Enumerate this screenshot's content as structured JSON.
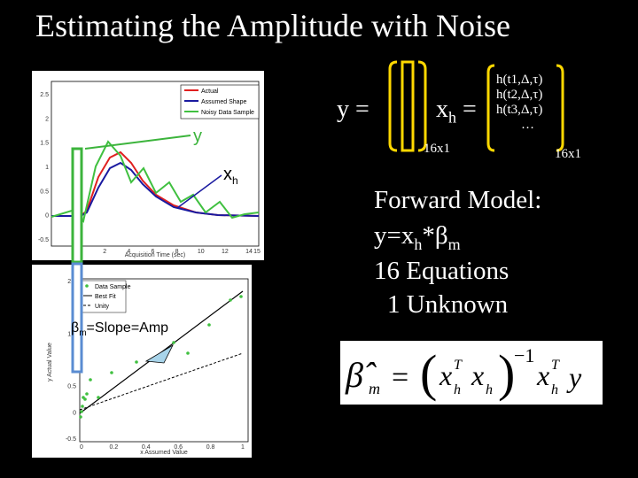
{
  "title": "Estimating the Amplitude with Noise",
  "top_plot": {
    "legend": [
      "Actual",
      "Assumed Shape",
      "Noisy Data Sample"
    ],
    "xlabel": "Acquisition Time (sec)",
    "x_ticks": [
      "0",
      "2",
      "4",
      "6",
      "8",
      "10",
      "12",
      "14",
      "15"
    ],
    "y_ticks": [
      "2.5",
      "2",
      "1.5",
      "1",
      "0.5",
      "0",
      "-0.5"
    ],
    "colors": {
      "actual": "#e02020",
      "assumed": "#1a1aa0",
      "noisy": "#40c040"
    }
  },
  "bottom_plot": {
    "legend": [
      "Data Sample",
      "Best Fit",
      "Unity"
    ],
    "xlabel": "x Assumed Value",
    "ylabel": "y Actual Value",
    "x_ticks": [
      "0",
      "0.2",
      "0.4",
      "0.6",
      "0.8",
      "1"
    ],
    "y_ticks": [
      "2.5",
      "2",
      "1.5",
      "1",
      "0.5",
      "0",
      "-0.5"
    ]
  },
  "labels": {
    "y_label": "y",
    "xh_label": "x",
    "xh_sub": "h",
    "beta_label": "β",
    "beta_sub": "m",
    "beta_rest": "=Slope=Amp"
  },
  "equation": {
    "y_eq": "y =",
    "xh_eq": "x",
    "xh_eq_sub": "h",
    "equals": "=",
    "h_rows": [
      "h(t1,Δ,τ)",
      "h(t2,Δ,τ)",
      "h(t3,Δ,τ)",
      "…"
    ],
    "dim_left": "16x1",
    "dim_right": "16x1"
  },
  "forward_model": {
    "line1": "Forward Model:",
    "line2_a": "y=x",
    "line2_sub": "h",
    "line2_b": "*β",
    "line2_sub2": "m",
    "line3": "16 Equations",
    "line4": "1 Unknown"
  },
  "formula": {
    "beta_hat": "β̂",
    "sub_m": "m",
    "eq": "=",
    "x": "x",
    "h": "h",
    "T": "T",
    "inv": "−1",
    "y": "y"
  }
}
